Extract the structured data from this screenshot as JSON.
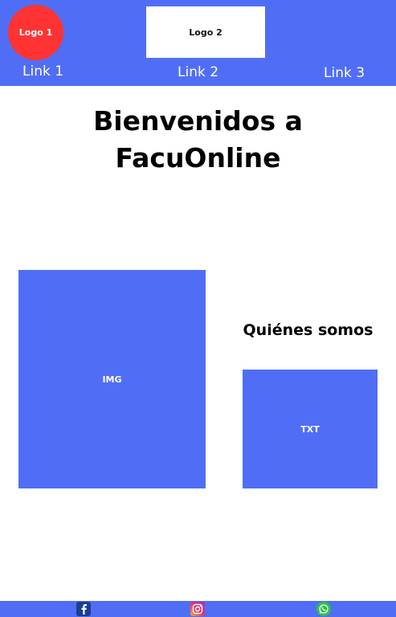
{
  "header": {
    "logo1": "Logo 1",
    "logo2": "Logo 2",
    "links": [
      "Link 1",
      "Link 2",
      "Link 3"
    ]
  },
  "main": {
    "title": "Bienvenidos a FacuOnline",
    "image_placeholder": "IMG",
    "about_title": "Quiénes somos",
    "text_placeholder": "TXT"
  },
  "footer": {
    "social_icons": [
      "facebook-icon",
      "instagram-icon",
      "whatsapp-icon"
    ]
  },
  "colors": {
    "primary": "#506ef5",
    "logo1_bg": "#ff3333",
    "background": "#ffffff"
  }
}
